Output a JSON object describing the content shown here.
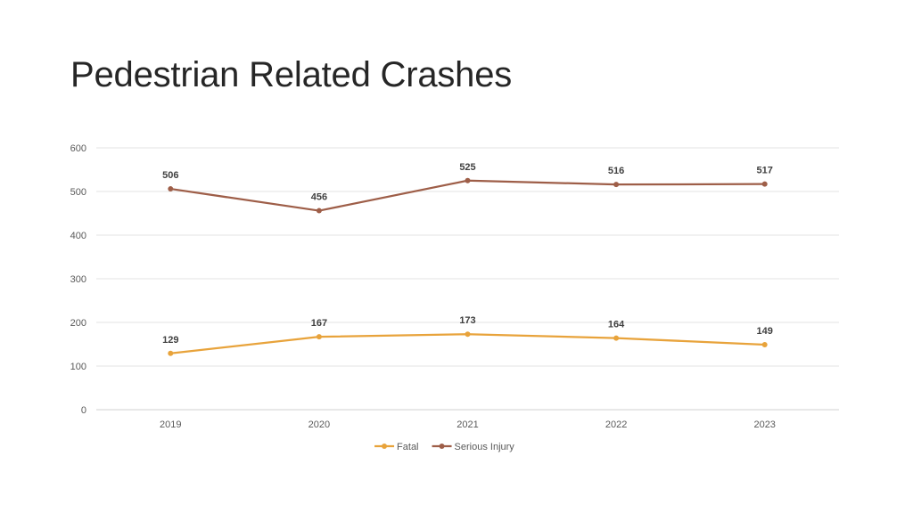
{
  "title": "Pedestrian Related Crashes",
  "chart_data": {
    "type": "line",
    "categories": [
      "2019",
      "2020",
      "2021",
      "2022",
      "2023"
    ],
    "series": [
      {
        "name": "Fatal",
        "values": [
          129,
          167,
          173,
          164,
          149
        ],
        "color": "#E8A33B"
      },
      {
        "name": "Serious Injury",
        "values": [
          506,
          456,
          525,
          516,
          517
        ],
        "color": "#9E5E48"
      }
    ],
    "ylim": [
      0,
      600
    ],
    "yticks": [
      0,
      100,
      200,
      300,
      400,
      500,
      600
    ],
    "grid": true,
    "legend_position": "bottom",
    "data_labels": true
  }
}
